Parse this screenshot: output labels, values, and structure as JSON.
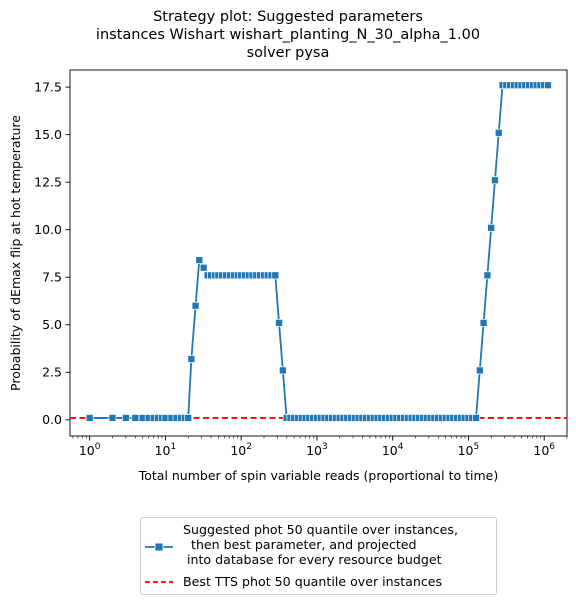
{
  "chart_data": {
    "type": "line",
    "title": [
      "Strategy plot: Suggested parameters",
      "instances Wishart wishart_planting_N_30_alpha_1.00",
      "solver pysa"
    ],
    "xlabel": "Total number of spin variable reads (proportional to time)",
    "ylabel": "Probability of dEmax flip at hot temperature",
    "xscale": "log",
    "xlim": [
      0.55,
      2000000
    ],
    "ylim": [
      -0.85,
      18.4
    ],
    "x_ticks": [
      {
        "value": 1,
        "base": "10",
        "exp": "0"
      },
      {
        "value": 10,
        "base": "10",
        "exp": "1"
      },
      {
        "value": 100,
        "base": "10",
        "exp": "2"
      },
      {
        "value": 1000,
        "base": "10",
        "exp": "3"
      },
      {
        "value": 10000,
        "base": "10",
        "exp": "4"
      },
      {
        "value": 100000,
        "base": "10",
        "exp": "5"
      },
      {
        "value": 1000000,
        "base": "10",
        "exp": "6"
      }
    ],
    "y_ticks": [
      0.0,
      2.5,
      5.0,
      7.5,
      10.0,
      12.5,
      15.0,
      17.5
    ],
    "y_tick_labels": [
      "0.0",
      "2.5",
      "5.0",
      "7.5",
      "10.0",
      "12.5",
      "15.0",
      "17.5"
    ],
    "grid": false,
    "legend_position": "below",
    "series": [
      {
        "name": "Suggested phot 50 quantile over instances,\n  then best parameter, and projected\n into database for every resource budget",
        "color": "#1f77b4",
        "marker": "square",
        "points": [
          [
            1,
            0.1
          ],
          [
            2,
            0.1
          ],
          [
            3,
            0.1
          ],
          [
            4,
            0.1
          ],
          [
            5,
            0.1
          ],
          [
            6,
            0.1
          ],
          [
            7,
            0.1
          ],
          [
            8,
            0.1
          ],
          [
            9,
            0.1
          ],
          [
            10,
            0.1
          ],
          [
            12,
            0.1
          ],
          [
            14,
            0.1
          ],
          [
            16,
            0.1
          ],
          [
            18,
            0.1
          ],
          [
            20,
            0.1
          ],
          [
            22,
            3.2
          ],
          [
            25,
            6.0
          ],
          [
            28,
            8.4
          ],
          [
            32,
            8.0
          ],
          [
            36,
            7.6
          ],
          [
            40,
            7.6
          ],
          [
            45,
            7.6
          ],
          [
            50,
            7.6
          ],
          [
            56,
            7.6
          ],
          [
            63,
            7.6
          ],
          [
            71,
            7.6
          ],
          [
            80,
            7.6
          ],
          [
            90,
            7.6
          ],
          [
            100,
            7.6
          ],
          [
            112,
            7.6
          ],
          [
            126,
            7.6
          ],
          [
            141,
            7.6
          ],
          [
            158,
            7.6
          ],
          [
            178,
            7.6
          ],
          [
            200,
            7.6
          ],
          [
            224,
            7.6
          ],
          [
            251,
            7.6
          ],
          [
            282,
            7.6
          ],
          [
            316,
            5.1
          ],
          [
            355,
            2.6
          ],
          [
            398,
            0.1
          ],
          [
            447,
            0.1
          ],
          [
            501,
            0.1
          ],
          [
            562,
            0.1
          ],
          [
            631,
            0.1
          ],
          [
            708,
            0.1
          ],
          [
            794,
            0.1
          ],
          [
            891,
            0.1
          ],
          [
            1000,
            0.1
          ],
          [
            1122,
            0.1
          ],
          [
            1259,
            0.1
          ],
          [
            1413,
            0.1
          ],
          [
            1585,
            0.1
          ],
          [
            1778,
            0.1
          ],
          [
            1995,
            0.1
          ],
          [
            2239,
            0.1
          ],
          [
            2512,
            0.1
          ],
          [
            2818,
            0.1
          ],
          [
            3162,
            0.1
          ],
          [
            3548,
            0.1
          ],
          [
            3981,
            0.1
          ],
          [
            4467,
            0.1
          ],
          [
            5012,
            0.1
          ],
          [
            5623,
            0.1
          ],
          [
            6310,
            0.1
          ],
          [
            7079,
            0.1
          ],
          [
            7943,
            0.1
          ],
          [
            8913,
            0.1
          ],
          [
            10000,
            0.1
          ],
          [
            11220,
            0.1
          ],
          [
            12589,
            0.1
          ],
          [
            14125,
            0.1
          ],
          [
            15849,
            0.1
          ],
          [
            17783,
            0.1
          ],
          [
            19953,
            0.1
          ],
          [
            22387,
            0.1
          ],
          [
            25119,
            0.1
          ],
          [
            28184,
            0.1
          ],
          [
            31623,
            0.1
          ],
          [
            35481,
            0.1
          ],
          [
            39811,
            0.1
          ],
          [
            44668,
            0.1
          ],
          [
            50119,
            0.1
          ],
          [
            56234,
            0.1
          ],
          [
            63096,
            0.1
          ],
          [
            70795,
            0.1
          ],
          [
            79433,
            0.1
          ],
          [
            89125,
            0.1
          ],
          [
            100000,
            0.1
          ],
          [
            112202,
            0.1
          ],
          [
            125893,
            0.1
          ],
          [
            141254,
            2.6
          ],
          [
            158489,
            5.1
          ],
          [
            177828,
            7.6
          ],
          [
            199526,
            10.1
          ],
          [
            223872,
            12.6
          ],
          [
            251189,
            15.1
          ],
          [
            281838,
            17.6
          ],
          [
            316228,
            17.6
          ],
          [
            354813,
            17.6
          ],
          [
            398107,
            17.6
          ],
          [
            446684,
            17.6
          ],
          [
            501187,
            17.6
          ],
          [
            562341,
            17.6
          ],
          [
            630957,
            17.6
          ],
          [
            707946,
            17.6
          ],
          [
            794328,
            17.6
          ],
          [
            891251,
            17.6
          ],
          [
            1000000,
            17.6
          ],
          [
            1122018,
            17.6
          ]
        ]
      },
      {
        "name": "Best TTS phot 50 quantile over instances",
        "color": "#ff0000",
        "style": "dashed",
        "y": 0.1
      }
    ]
  }
}
